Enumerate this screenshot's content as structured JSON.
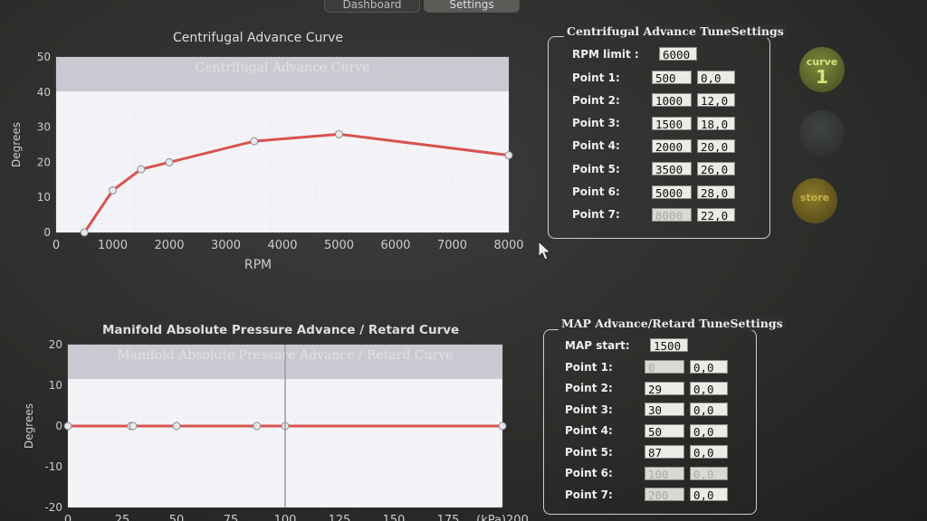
{
  "tabs": [
    {
      "label": "Dashboard",
      "active": false
    },
    {
      "label": "Settings",
      "active": true
    }
  ],
  "centrifugal_chart": {
    "title": "Centrifugal Advance Curve",
    "watermark": "Centrifugal Advance Curve"
  },
  "map_chart": {
    "title": "Manifold Absolute Pressure Advance / Retard Curve",
    "watermark": "Manifold Absolute Pressure Advance / Retard Curve"
  },
  "chart_data": [
    {
      "type": "line",
      "title": "Centrifugal Advance Curve",
      "xlabel": "RPM",
      "ylabel": "Degrees",
      "xlim": [
        0,
        8000
      ],
      "ylim": [
        0,
        50
      ],
      "xticks": [
        0,
        1000,
        2000,
        3000,
        4000,
        5000,
        6000,
        7000,
        8000
      ],
      "yticks": [
        0,
        10,
        20,
        30,
        40,
        50
      ],
      "x": [
        500,
        1000,
        1500,
        2000,
        3500,
        5000,
        8000
      ],
      "y": [
        0,
        12,
        18,
        20,
        26,
        28,
        22
      ],
      "grid": true,
      "color": "#d9534f"
    },
    {
      "type": "line",
      "title": "Manifold Absolute Pressure Advance / Retard Curve",
      "xlabel": "",
      "ylabel": "Degrees",
      "xlim": [
        0,
        200
      ],
      "ylim": [
        -20,
        20
      ],
      "xticks": [
        "0",
        "25",
        "50",
        "75",
        "100",
        "125",
        "150",
        "175",
        "200"
      ],
      "xtick_last_prefix": "(kPa)",
      "yticks": [
        -20,
        -10,
        0,
        10,
        20
      ],
      "x": [
        0,
        29,
        30,
        50,
        87,
        100,
        200
      ],
      "y": [
        0,
        0,
        0,
        0,
        0,
        0,
        0
      ],
      "grid": true,
      "color": "#d9534f"
    }
  ],
  "centrifugal_settings": {
    "title": "Centrifugal Advance TuneSettings",
    "rpm_limit_label": "RPM limit :",
    "rpm_limit": "6000",
    "points": [
      {
        "label": "Point 1:",
        "rpm": "500",
        "deg": "0,0",
        "disabled": false
      },
      {
        "label": "Point 2:",
        "rpm": "1000",
        "deg": "12,0",
        "disabled": false
      },
      {
        "label": "Point 3:",
        "rpm": "1500",
        "deg": "18,0",
        "disabled": false
      },
      {
        "label": "Point 4:",
        "rpm": "2000",
        "deg": "20,0",
        "disabled": false
      },
      {
        "label": "Point 5:",
        "rpm": "3500",
        "deg": "26,0",
        "disabled": false
      },
      {
        "label": "Point 6:",
        "rpm": "5000",
        "deg": "28,0",
        "disabled": false
      },
      {
        "label": "Point 7:",
        "rpm": "8000",
        "deg": "22,0",
        "disabled": true
      }
    ]
  },
  "map_settings": {
    "title": "MAP Advance/Retard TuneSettings",
    "map_start_label": "MAP start:",
    "map_start": "1500",
    "points": [
      {
        "label": "Point 1:",
        "kpa": "0",
        "deg": "0,0",
        "kpa_disabled": true,
        "deg_disabled": false
      },
      {
        "label": "Point 2:",
        "kpa": "29",
        "deg": "0,0",
        "kpa_disabled": false,
        "deg_disabled": false
      },
      {
        "label": "Point 3:",
        "kpa": "30",
        "deg": "0,0",
        "kpa_disabled": false,
        "deg_disabled": false
      },
      {
        "label": "Point 4:",
        "kpa": "50",
        "deg": "0,0",
        "kpa_disabled": false,
        "deg_disabled": false
      },
      {
        "label": "Point 5:",
        "kpa": "87",
        "deg": "0,0",
        "kpa_disabled": false,
        "deg_disabled": false
      },
      {
        "label": "Point 6:",
        "kpa": "100",
        "deg": "0,0",
        "kpa_disabled": true,
        "deg_disabled": true
      },
      {
        "label": "Point 7:",
        "kpa": "200",
        "deg": "0,0",
        "kpa_disabled": true,
        "deg_disabled": false
      }
    ]
  },
  "side_buttons": {
    "curve_label": "curve",
    "curve_number": "1",
    "store_label": "store"
  }
}
